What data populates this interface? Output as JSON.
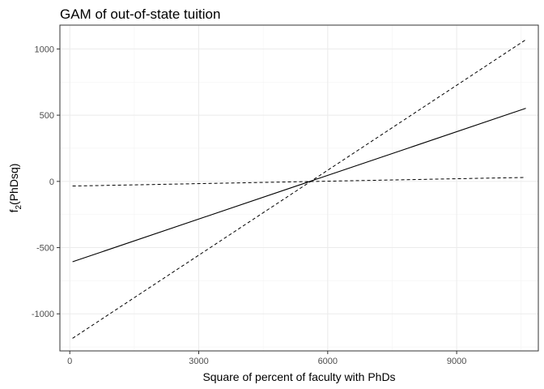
{
  "chart_data": {
    "type": "line",
    "title": "GAM of out-of-state tuition",
    "xlabel": "Square of percent of faculty with PhDs",
    "ylabel_base": "f",
    "ylabel_sub": "2",
    "ylabel_rest": "(PhDsq)",
    "xlim": [
      -230,
      10900
    ],
    "ylim": [
      -1280,
      1180
    ],
    "x_ticks": [
      0,
      3000,
      6000,
      9000
    ],
    "x_tick_labels": [
      "0",
      "3000",
      "6000",
      "9000"
    ],
    "y_ticks": [
      -1000,
      -500,
      0,
      500,
      1000
    ],
    "y_tick_labels": [
      "-1000",
      "-500",
      "0",
      "500",
      "1000"
    ],
    "grid": true,
    "legend": "none",
    "series": [
      {
        "style": "solid",
        "x": [
          64,
          10609
        ],
        "y": [
          -607,
          552
        ]
      },
      {
        "style": "dashed",
        "x": [
          64,
          10609
        ],
        "y": [
          -1185,
          1070
        ]
      },
      {
        "style": "dashed",
        "x": [
          64,
          10609
        ],
        "y": [
          -35,
          30
        ]
      }
    ]
  }
}
